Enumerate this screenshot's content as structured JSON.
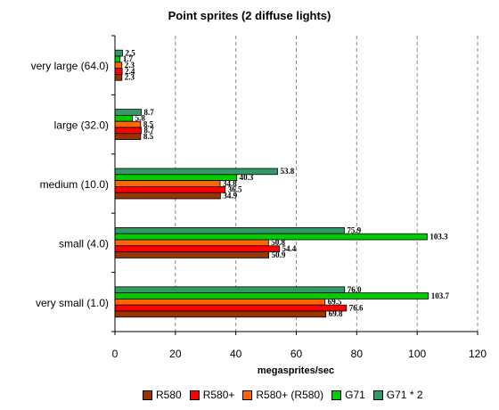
{
  "chart_data": {
    "type": "bar",
    "orientation": "horizontal",
    "title": "Point sprites (2 diffuse lights)",
    "xlabel": "megasprites/sec",
    "ylabel": "",
    "xlim": [
      0,
      120
    ],
    "x_ticks": [
      0,
      20,
      40,
      60,
      80,
      100,
      120
    ],
    "grid": "vertical dashed",
    "legend_position": "bottom",
    "categories": [
      "very large (64.0)",
      "large (32.0)",
      "medium (10.0)",
      "small (4.0)",
      "very small (1.0)"
    ],
    "series": [
      {
        "name": "R580",
        "color": "#993300",
        "values": [
          2.3,
          8.5,
          34.9,
          50.9,
          69.8
        ]
      },
      {
        "name": "R580+",
        "color": "#ff0000",
        "values": [
          2.4,
          8.7,
          36.5,
          54.4,
          76.6
        ]
      },
      {
        "name": "R580+ (R580)",
        "color": "#ff6600",
        "values": [
          2.3,
          8.5,
          34.8,
          50.8,
          69.5
        ]
      },
      {
        "name": "G71",
        "color": "#00cc00",
        "values": [
          1.7,
          5.8,
          40.3,
          103.3,
          103.7
        ]
      },
      {
        "name": "G71 * 2",
        "color": "#339966",
        "values": [
          2.5,
          8.7,
          53.8,
          75.9,
          76.0
        ]
      }
    ]
  }
}
